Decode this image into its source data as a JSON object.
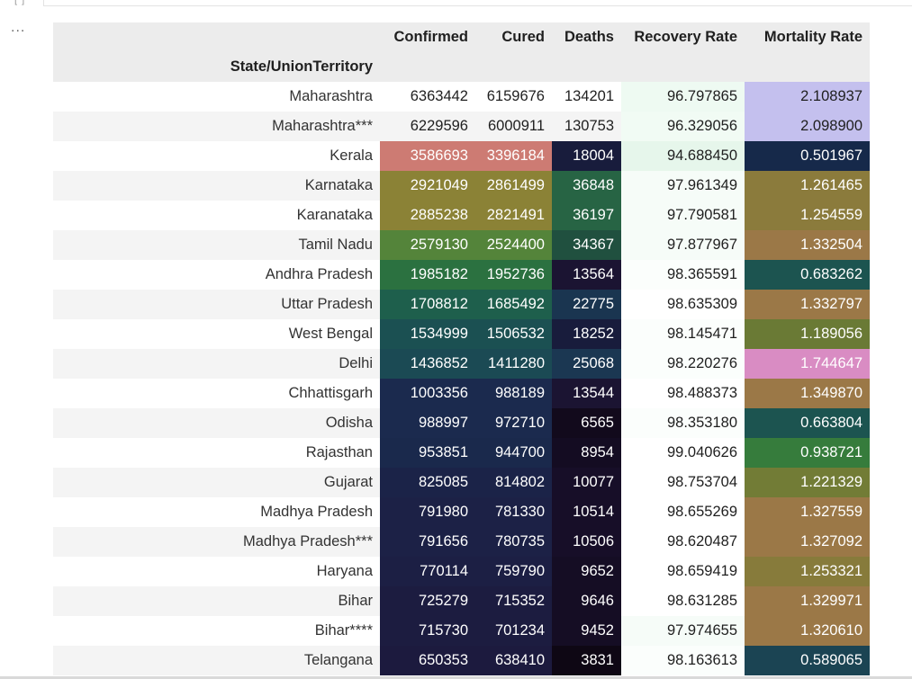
{
  "cell": {
    "prompt_label": "[ ]",
    "output_toggle": "..."
  },
  "table": {
    "index_name": "State/UnionTerritory",
    "columns": [
      "Confirmed",
      "Cured",
      "Deaths",
      "Recovery Rate",
      "Mortality Rate"
    ],
    "rows": [
      {
        "state": "Maharashtra",
        "cells": [
          {
            "value": "6363442",
            "bg": "#ffffff",
            "fg": "#1f1f1f"
          },
          {
            "value": "6159676",
            "bg": "#ffffff",
            "fg": "#1f1f1f"
          },
          {
            "value": "134201",
            "bg": "#ffffff",
            "fg": "#1f1f1f"
          },
          {
            "value": "96.797865",
            "bg": "#eefaf2",
            "fg": "#1f1f1f"
          },
          {
            "value": "2.108937",
            "bg": "#c4c0ee",
            "fg": "#1f1f1f"
          }
        ]
      },
      {
        "state": "Maharashtra***",
        "cells": [
          {
            "value": "6229596",
            "bg": "#f4f4f4",
            "fg": "#1f1f1f"
          },
          {
            "value": "6000911",
            "bg": "#f4f4f4",
            "fg": "#1f1f1f"
          },
          {
            "value": "130753",
            "bg": "#f4f4f4",
            "fg": "#1f1f1f"
          },
          {
            "value": "96.329056",
            "bg": "#f1fbf4",
            "fg": "#1f1f1f"
          },
          {
            "value": "2.098900",
            "bg": "#c4c0ee",
            "fg": "#1f1f1f"
          }
        ]
      },
      {
        "state": "Kerala",
        "cells": [
          {
            "value": "3586693",
            "bg": "#cd7b73",
            "fg": "#ffffff"
          },
          {
            "value": "3396184",
            "bg": "#cd7b73",
            "fg": "#ffffff"
          },
          {
            "value": "18004",
            "bg": "#181c3c",
            "fg": "#ffffff"
          },
          {
            "value": "94.688450",
            "bg": "#e6f6eb",
            "fg": "#1f1f1f"
          },
          {
            "value": "0.501967",
            "bg": "#16294a",
            "fg": "#ffffff"
          }
        ]
      },
      {
        "state": "Karnataka",
        "cells": [
          {
            "value": "2921049",
            "bg": "#8b8236",
            "fg": "#ffffff"
          },
          {
            "value": "2861499",
            "bg": "#8b8236",
            "fg": "#ffffff"
          },
          {
            "value": "36848",
            "bg": "#276444",
            "fg": "#ffffff"
          },
          {
            "value": "97.961349",
            "bg": "#f6fcf8",
            "fg": "#1f1f1f"
          },
          {
            "value": "1.261465",
            "bg": "#8b7b3c",
            "fg": "#ffffff"
          }
        ]
      },
      {
        "state": "Karanataka",
        "cells": [
          {
            "value": "2885238",
            "bg": "#8b8236",
            "fg": "#ffffff"
          },
          {
            "value": "2821491",
            "bg": "#8b8236",
            "fg": "#ffffff"
          },
          {
            "value": "36197",
            "bg": "#276444",
            "fg": "#ffffff"
          },
          {
            "value": "97.790581",
            "bg": "#f6fcf8",
            "fg": "#1f1f1f"
          },
          {
            "value": "1.254559",
            "bg": "#8b7b3c",
            "fg": "#ffffff"
          }
        ]
      },
      {
        "state": "Tamil Nadu",
        "cells": [
          {
            "value": "2579130",
            "bg": "#54843a",
            "fg": "#ffffff"
          },
          {
            "value": "2524400",
            "bg": "#54843a",
            "fg": "#ffffff"
          },
          {
            "value": "34367",
            "bg": "#20503f",
            "fg": "#ffffff"
          },
          {
            "value": "97.877967",
            "bg": "#f6fcf8",
            "fg": "#1f1f1f"
          },
          {
            "value": "1.332504",
            "bg": "#9b7847",
            "fg": "#ffffff"
          }
        ]
      },
      {
        "state": "Andhra Pradesh",
        "cells": [
          {
            "value": "1985182",
            "bg": "#2b7140",
            "fg": "#ffffff"
          },
          {
            "value": "1952736",
            "bg": "#2b7140",
            "fg": "#ffffff"
          },
          {
            "value": "13564",
            "bg": "#1b1432",
            "fg": "#ffffff"
          },
          {
            "value": "98.365591",
            "bg": "#fbfefc",
            "fg": "#1f1f1f"
          },
          {
            "value": "0.683262",
            "bg": "#1c5450",
            "fg": "#ffffff"
          }
        ]
      },
      {
        "state": "Uttar Pradesh",
        "cells": [
          {
            "value": "1708812",
            "bg": "#1e5f4c",
            "fg": "#ffffff"
          },
          {
            "value": "1685492",
            "bg": "#1e5f4c",
            "fg": "#ffffff"
          },
          {
            "value": "22775",
            "bg": "#1a3550",
            "fg": "#ffffff"
          },
          {
            "value": "98.635309",
            "bg": "#ffffff",
            "fg": "#1f1f1f"
          },
          {
            "value": "1.332797",
            "bg": "#9b7847",
            "fg": "#ffffff"
          }
        ]
      },
      {
        "state": "West Bengal",
        "cells": [
          {
            "value": "1534999",
            "bg": "#1b5052",
            "fg": "#ffffff"
          },
          {
            "value": "1506532",
            "bg": "#1b5052",
            "fg": "#ffffff"
          },
          {
            "value": "18252",
            "bg": "#181c3c",
            "fg": "#ffffff"
          },
          {
            "value": "98.145471",
            "bg": "#fbfefc",
            "fg": "#1f1f1f"
          },
          {
            "value": "1.189056",
            "bg": "#6a7a35",
            "fg": "#ffffff"
          }
        ]
      },
      {
        "state": "Delhi",
        "cells": [
          {
            "value": "1436852",
            "bg": "#1b4a54",
            "fg": "#ffffff"
          },
          {
            "value": "1411280",
            "bg": "#1b4a54",
            "fg": "#ffffff"
          },
          {
            "value": "25068",
            "bg": "#1b3752",
            "fg": "#ffffff"
          },
          {
            "value": "98.220276",
            "bg": "#fbfefc",
            "fg": "#1f1f1f"
          },
          {
            "value": "1.744647",
            "bg": "#d98cc3",
            "fg": "#ffffff"
          }
        ]
      },
      {
        "state": "Chhattisgarh",
        "cells": [
          {
            "value": "1003356",
            "bg": "#1b2a4e",
            "fg": "#ffffff"
          },
          {
            "value": "988189",
            "bg": "#1b2a4e",
            "fg": "#ffffff"
          },
          {
            "value": "13544",
            "bg": "#1b1432",
            "fg": "#ffffff"
          },
          {
            "value": "98.488373",
            "bg": "#ffffff",
            "fg": "#1f1f1f"
          },
          {
            "value": "1.349870",
            "bg": "#9b7847",
            "fg": "#ffffff"
          }
        ]
      },
      {
        "state": "Odisha",
        "cells": [
          {
            "value": "988997",
            "bg": "#1b2a4e",
            "fg": "#ffffff"
          },
          {
            "value": "972710",
            "bg": "#1b2a4e",
            "fg": "#ffffff"
          },
          {
            "value": "6565",
            "bg": "#120a1c",
            "fg": "#ffffff"
          },
          {
            "value": "98.353180",
            "bg": "#fbfefc",
            "fg": "#1f1f1f"
          },
          {
            "value": "0.663804",
            "bg": "#1c5450",
            "fg": "#ffffff"
          }
        ]
      },
      {
        "state": "Rajasthan",
        "cells": [
          {
            "value": "953851",
            "bg": "#1a294c",
            "fg": "#ffffff"
          },
          {
            "value": "944700",
            "bg": "#1a294c",
            "fg": "#ffffff"
          },
          {
            "value": "8954",
            "bg": "#140c22",
            "fg": "#ffffff"
          },
          {
            "value": "99.040626",
            "bg": "#ffffff",
            "fg": "#1f1f1f"
          },
          {
            "value": "0.938721",
            "bg": "#367c3c",
            "fg": "#ffffff"
          }
        ]
      },
      {
        "state": "Gujarat",
        "cells": [
          {
            "value": "825085",
            "bg": "#1b2348",
            "fg": "#ffffff"
          },
          {
            "value": "814802",
            "bg": "#1b2348",
            "fg": "#ffffff"
          },
          {
            "value": "10077",
            "bg": "#170e28",
            "fg": "#ffffff"
          },
          {
            "value": "98.753704",
            "bg": "#ffffff",
            "fg": "#1f1f1f"
          },
          {
            "value": "1.221329",
            "bg": "#727c36",
            "fg": "#ffffff"
          }
        ]
      },
      {
        "state": "Madhya Pradesh",
        "cells": [
          {
            "value": "791980",
            "bg": "#1c2146",
            "fg": "#ffffff"
          },
          {
            "value": "781330",
            "bg": "#1c2146",
            "fg": "#ffffff"
          },
          {
            "value": "10514",
            "bg": "#170e28",
            "fg": "#ffffff"
          },
          {
            "value": "98.655269",
            "bg": "#ffffff",
            "fg": "#1f1f1f"
          },
          {
            "value": "1.327559",
            "bg": "#9b7847",
            "fg": "#ffffff"
          }
        ]
      },
      {
        "state": "Madhya Pradesh***",
        "cells": [
          {
            "value": "791656",
            "bg": "#1c2146",
            "fg": "#ffffff"
          },
          {
            "value": "780735",
            "bg": "#1c2146",
            "fg": "#ffffff"
          },
          {
            "value": "10506",
            "bg": "#170e28",
            "fg": "#ffffff"
          },
          {
            "value": "98.620487",
            "bg": "#ffffff",
            "fg": "#1f1f1f"
          },
          {
            "value": "1.327092",
            "bg": "#9b7847",
            "fg": "#ffffff"
          }
        ]
      },
      {
        "state": "Haryana",
        "cells": [
          {
            "value": "770114",
            "bg": "#1c1f44",
            "fg": "#ffffff"
          },
          {
            "value": "759790",
            "bg": "#1c1f44",
            "fg": "#ffffff"
          },
          {
            "value": "9652",
            "bg": "#150d24",
            "fg": "#ffffff"
          },
          {
            "value": "98.659419",
            "bg": "#ffffff",
            "fg": "#1f1f1f"
          },
          {
            "value": "1.253321",
            "bg": "#877b3b",
            "fg": "#ffffff"
          }
        ]
      },
      {
        "state": "Bihar",
        "cells": [
          {
            "value": "725279",
            "bg": "#1c1c40",
            "fg": "#ffffff"
          },
          {
            "value": "715352",
            "bg": "#1c1c40",
            "fg": "#ffffff"
          },
          {
            "value": "9646",
            "bg": "#150d24",
            "fg": "#ffffff"
          },
          {
            "value": "98.631285",
            "bg": "#ffffff",
            "fg": "#1f1f1f"
          },
          {
            "value": "1.329971",
            "bg": "#9b7847",
            "fg": "#ffffff"
          }
        ]
      },
      {
        "state": "Bihar****",
        "cells": [
          {
            "value": "715730",
            "bg": "#1c1c40",
            "fg": "#ffffff"
          },
          {
            "value": "701234",
            "bg": "#1c1c40",
            "fg": "#ffffff"
          },
          {
            "value": "9452",
            "bg": "#150d24",
            "fg": "#ffffff"
          },
          {
            "value": "97.974655",
            "bg": "#f6fcf8",
            "fg": "#1f1f1f"
          },
          {
            "value": "1.320610",
            "bg": "#9b7847",
            "fg": "#ffffff"
          }
        ]
      },
      {
        "state": "Telangana",
        "cells": [
          {
            "value": "650353",
            "bg": "#1c1a3e",
            "fg": "#ffffff"
          },
          {
            "value": "638410",
            "bg": "#1c1a3e",
            "fg": "#ffffff"
          },
          {
            "value": "3831",
            "bg": "#0e0714",
            "fg": "#ffffff"
          },
          {
            "value": "98.163613",
            "bg": "#fbfefc",
            "fg": "#1f1f1f"
          },
          {
            "value": "0.589065",
            "bg": "#1b4453",
            "fg": "#ffffff"
          }
        ]
      }
    ]
  }
}
